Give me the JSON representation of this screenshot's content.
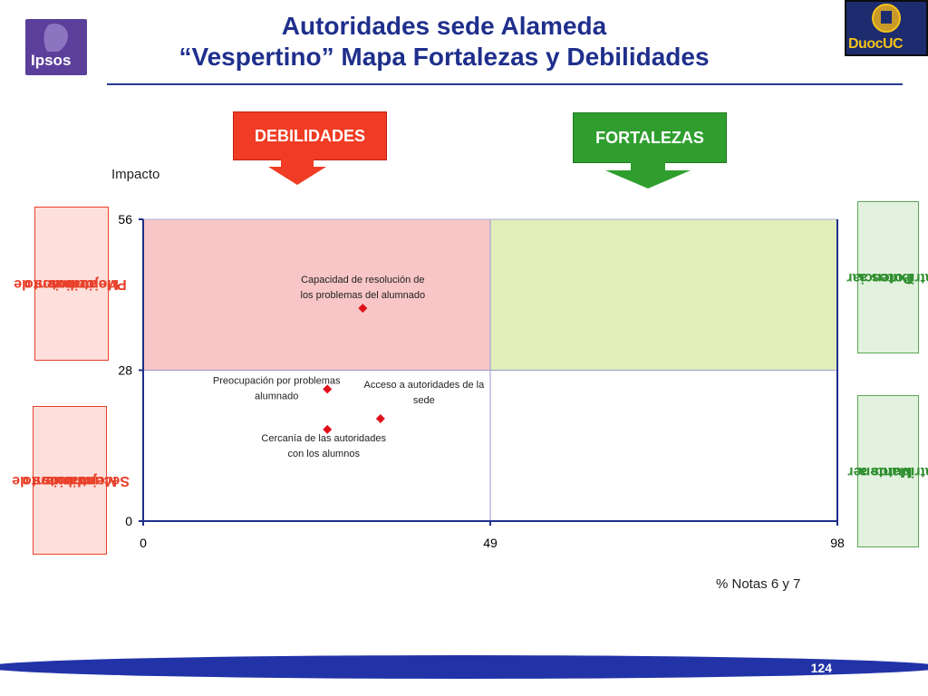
{
  "header": {
    "title_line1": "Autoridades sede Alameda",
    "title_line2": "“Vespertino” Mapa Fortalezas y Debilidades",
    "logo_left": "Ipsos",
    "logo_right": "DuocUC"
  },
  "tags": {
    "debilidades": "DEBILIDADES",
    "fortalezas": "FORTALEZAS"
  },
  "side_labels": {
    "left_top": [
      "atributos de",
      "Mejoramiento",
      "Prioritarios"
    ],
    "left_bottom": [
      "atributos de",
      "Mejoramiento",
      "Secundarios"
    ],
    "right_top": [
      "atributos a",
      "Potenciar"
    ],
    "right_bottom": [
      "atributos a",
      "Mantener"
    ]
  },
  "colors": {
    "debilidades_red": "#f03c24",
    "fortalezas_green": "#2f9e2f",
    "quadrant_pink": "#f8c6c6",
    "quadrant_green": "#e1eeb9",
    "marker": "#e0101a",
    "brand_blue": "#1f2f8c"
  },
  "chart_data": {
    "type": "scatter",
    "ylabel": "Impacto",
    "xlabel": "% Notas 6 y 7",
    "xlim": [
      0,
      98
    ],
    "ylim": [
      0,
      56
    ],
    "xticks": [
      "0",
      "49",
      "98"
    ],
    "yticks": [
      "0",
      "28",
      "56"
    ],
    "points": [
      {
        "label": [
          "Capacidad de resolución de",
          "los problemas del alumnado"
        ],
        "x": 31,
        "y": 39.5
      },
      {
        "label": [
          "Preocupación por  problemas",
          "alumnado"
        ],
        "x": 26,
        "y": 24.5
      },
      {
        "label": [
          "Acceso  a autoridades de la",
          "sede"
        ],
        "x": 33.5,
        "y": 19
      },
      {
        "label": [
          "Cercanía de las autoridades",
          "con los alumnos"
        ],
        "x": 26,
        "y": 17
      }
    ]
  },
  "footer": {
    "page_number": "124"
  }
}
